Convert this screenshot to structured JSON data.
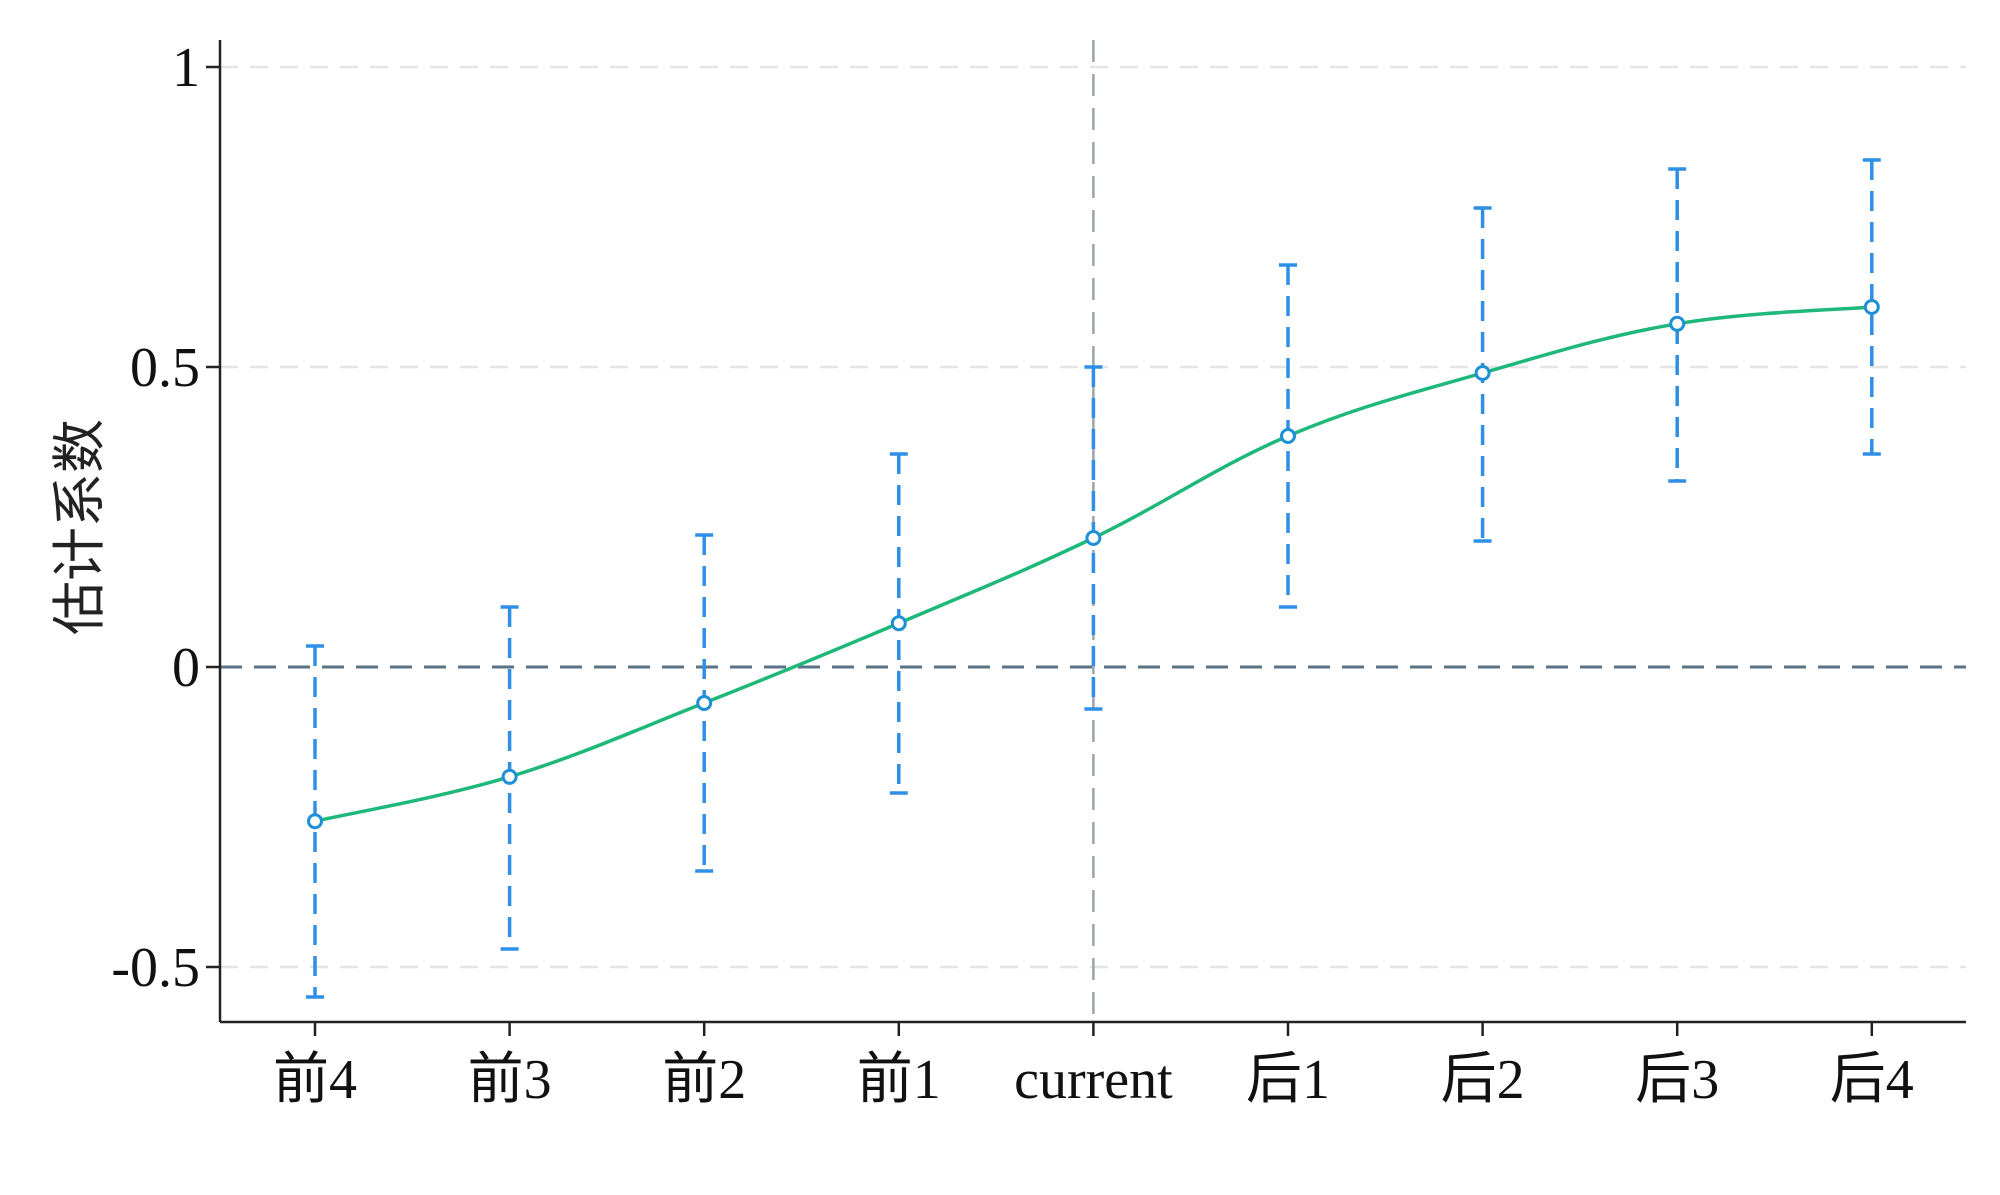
{
  "chart_data": {
    "type": "line",
    "title": "",
    "xlabel": "",
    "ylabel": "估计系数",
    "categories": [
      "前4",
      "前3",
      "前2",
      "前1",
      "current",
      "后1",
      "后2",
      "后3",
      "后4"
    ],
    "series": [
      {
        "values": [
          -0.257,
          -0.183,
          -0.06,
          0.073,
          0.215,
          0.385,
          0.49,
          0.572,
          0.6
        ],
        "ci_lower": [
          -0.55,
          -0.47,
          -0.34,
          -0.21,
          -0.07,
          0.1,
          0.21,
          0.31,
          0.355
        ],
        "ci_upper": [
          0.035,
          0.1,
          0.22,
          0.355,
          0.5,
          0.67,
          0.765,
          0.83,
          0.845
        ]
      }
    ],
    "yticks": [
      "-0.5",
      "0",
      "0.5",
      "1"
    ],
    "ytick_values": [
      -0.5,
      0,
      0.5,
      1
    ],
    "ylim": [
      -0.59,
      1.04
    ],
    "reference_lines": {
      "y": 0,
      "x_category": "current"
    },
    "grid": "horizontal dashed",
    "legend": "none",
    "colors": {
      "line": "#1db87a",
      "marker": "#1f8fd6",
      "error_bar": "#2f8fe6",
      "zero_line": "#5a7385",
      "vertical_line": "#9aa4aa",
      "grid": "#e4e4e4",
      "axis": "#222222"
    }
  }
}
